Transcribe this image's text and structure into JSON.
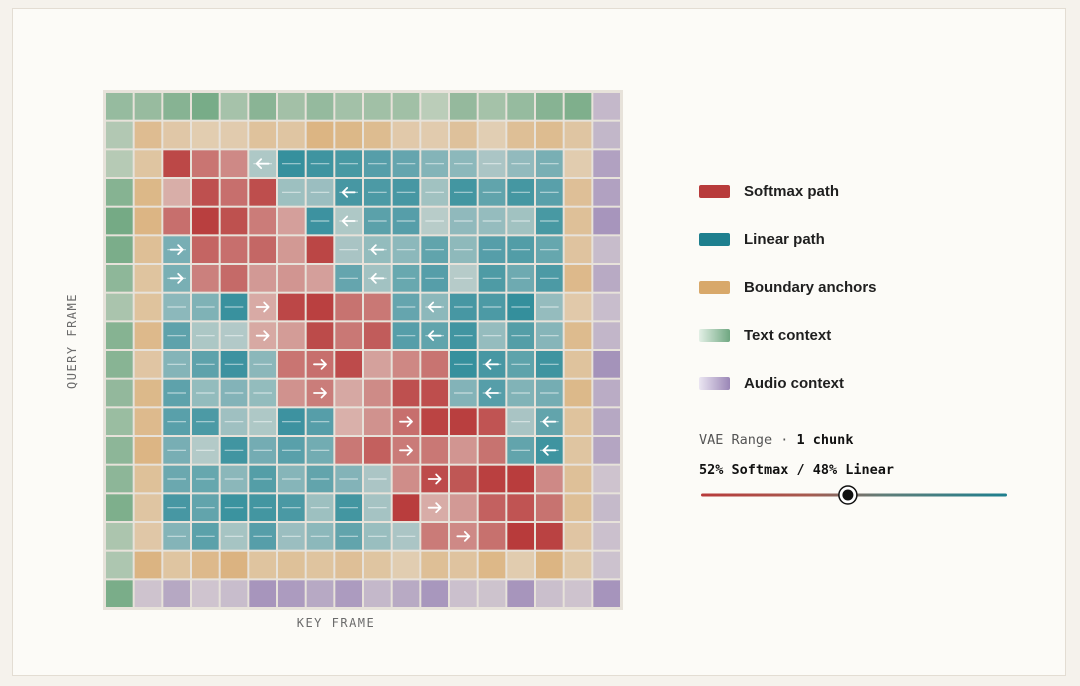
{
  "axes": {
    "y_label": "QUERY FRAME",
    "x_label": "KEY FRAME"
  },
  "legend": [
    {
      "label": "Softmax path",
      "color": "#b83b3b"
    },
    {
      "label": "Linear path",
      "color": "#1e7f8e"
    },
    {
      "label": "Boundary anchors",
      "color": "#d8a86a"
    },
    {
      "label": "Text context",
      "gradient": [
        "#d4eadc",
        "#6fa781"
      ]
    },
    {
      "label": "Audio context",
      "gradient": [
        "#ddd6ea",
        "#9a86b6"
      ]
    }
  ],
  "controls": {
    "vae_prefix": "VAE Range · ",
    "vae_value": "1 chunk",
    "ratio_text": "52% Softmax / 48% Linear",
    "softmax_fraction": 0.52
  },
  "colors": {
    "softmax": "#b83b3b",
    "linear": "#2a8a99",
    "boundary": "#d8a86a",
    "text": "#6fa781",
    "audio": "#9a86b6"
  },
  "grid": {
    "size": 18,
    "rows": [
      "TTTTTTTTTTTTTTTTTA",
      "TBBBBBBBBBBBBBBBBA",
      "TBSSSLLLLLLLLLLLBA",
      "TBSSSSLLLLLLLLLLBA",
      "TBSSSSSLLLLLLLLLBA",
      "TBLSSSSSLLLLLLLLBA",
      "TBLSSSSSLLLLLLLLBA",
      "TBLLLSSSSSLLLLLLBA",
      "TBLLLSSSSSLLLLLLBA",
      "TBLLLLSSSSSSLLLLBA",
      "TBLLLLSSSSSSLLLLBA",
      "TBLLLLLLSSSSSSLLBA",
      "TBLLLLLLSSSSSSLLBA",
      "TBLLLLLLLLSSSSSSBA",
      "TBLLLLLLLLSSSSSSBA",
      "TBLLLLLLLLLSSSSSBA",
      "TBBBBBBBBBBBBBBBBA",
      "TAAAAAAAAAAAAAAAAA"
    ],
    "arrows": [
      "r2c5L",
      "r3c8L",
      "r4c8L",
      "r5c2R",
      "r5c9L",
      "r6c2R",
      "r6c9L",
      "r7c5R",
      "r7c11L",
      "r8c5R",
      "r8c11L",
      "r9c7R",
      "r9c13L",
      "r10c7R",
      "r10c13L",
      "r11c10R",
      "r11c15L",
      "r12c10R",
      "r12c15L",
      "r13c11R",
      "r14c11R",
      "r15c12R"
    ]
  }
}
